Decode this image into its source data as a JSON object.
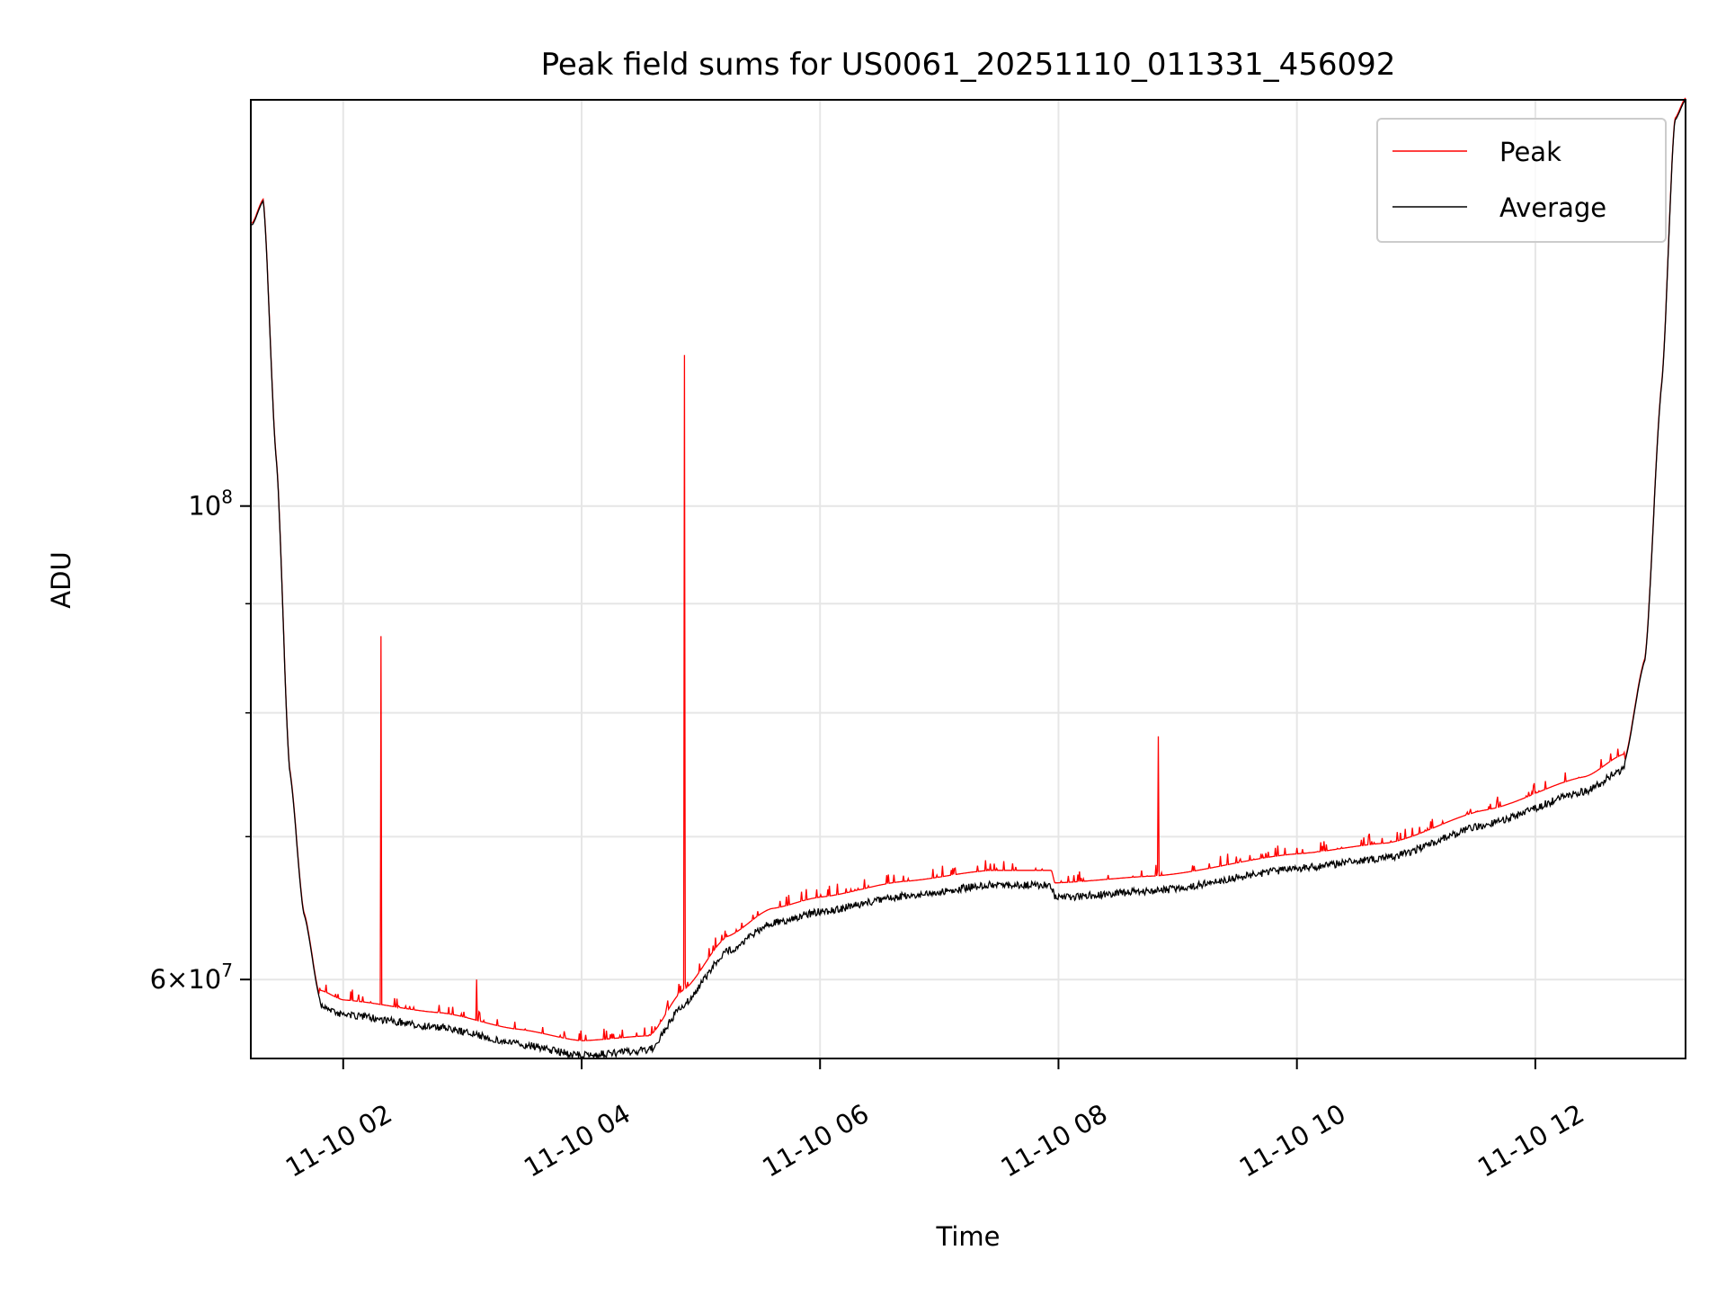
{
  "chart_data": {
    "type": "line",
    "title": "Peak field sums for US0061_20251110_011331_456092",
    "xlabel": "Time",
    "ylabel": "ADU",
    "yscale": "log",
    "xlim_hours": [
      1.225,
      13.26
    ],
    "ylim": [
      55100000,
      155000000
    ],
    "x_ticks": [
      {
        "hours": 2,
        "label": "11-10 02"
      },
      {
        "hours": 4,
        "label": "11-10 04"
      },
      {
        "hours": 6,
        "label": "11-10 06"
      },
      {
        "hours": 8,
        "label": "11-10 08"
      },
      {
        "hours": 10,
        "label": "11-10 10"
      },
      {
        "hours": 12,
        "label": "11-10 12"
      }
    ],
    "y_major_ticks": [
      {
        "value": 100000000,
        "base": "10",
        "exp": "8",
        "mant": ""
      },
      {
        "value": 60000000,
        "base": "10",
        "exp": "7",
        "mant": "6×"
      }
    ],
    "y_minor_grid": [
      70000000,
      80000000,
      90000000
    ],
    "grid": true,
    "legend": {
      "placement": "top-right",
      "entries": [
        {
          "label": "Peak",
          "color": "#ff0000"
        },
        {
          "label": "Average",
          "color": "#000000"
        }
      ]
    },
    "series": [
      {
        "name": "Average",
        "color": "#000000",
        "points": [
          [
            1.235,
            135400000
          ],
          [
            1.33,
            139000000
          ],
          [
            1.44,
            104900000
          ],
          [
            1.55,
            75200000
          ],
          [
            1.67,
            64400000
          ],
          [
            1.81,
            58600000
          ],
          [
            2.0,
            58000000
          ],
          [
            2.82,
            57200000
          ],
          [
            3.46,
            56200000
          ],
          [
            4.0,
            55500000
          ],
          [
            4.57,
            55800000
          ],
          [
            4.85,
            58600000
          ],
          [
            5.22,
            62100000
          ],
          [
            5.59,
            64000000
          ],
          [
            6.0,
            64800000
          ],
          [
            6.69,
            65900000
          ],
          [
            7.43,
            66700000
          ],
          [
            7.94,
            66700000
          ],
          [
            7.97,
            65800000
          ],
          [
            8.82,
            66300000
          ],
          [
            10.0,
            67900000
          ],
          [
            10.76,
            68700000
          ],
          [
            11.59,
            71200000
          ],
          [
            12.42,
            73800000
          ],
          [
            12.74,
            75600000
          ],
          [
            12.92,
            84700000
          ],
          [
            13.06,
            114000000
          ],
          [
            13.17,
            151600000
          ],
          [
            13.26,
            155000000
          ]
        ]
      },
      {
        "name": "Peak",
        "color": "#ff0000",
        "offset_ratio": 1.012,
        "spikes": [
          [
            2.32,
            86900000
          ],
          [
            3.12,
            60000000
          ],
          [
            4.86,
            117700000
          ],
          [
            8.84,
            78000000
          ]
        ]
      }
    ]
  }
}
